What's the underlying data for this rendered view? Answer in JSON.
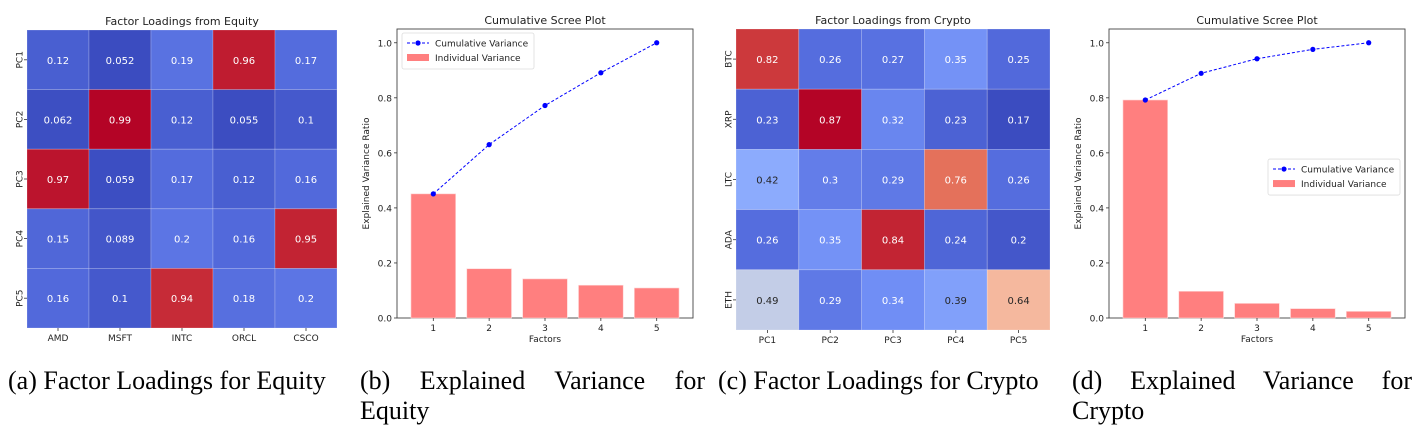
{
  "captions": {
    "a": "(a) Factor Loadings for Equity",
    "b": "(b) Explained Variance for Equity",
    "c": "(c) Factor Loadings for Crypto",
    "d": "(d) Explained Variance for Crypto"
  },
  "chart_data": [
    {
      "id": "equity-heatmap",
      "type": "heatmap",
      "title": "Factor Loadings from Equity",
      "colormap": "coolwarm",
      "xticklabels": [
        "AMD",
        "MSFT",
        "INTC",
        "ORCL",
        "CSCO"
      ],
      "yticklabels": [
        "PC1",
        "PC2",
        "PC3",
        "PC4",
        "PC5"
      ],
      "values": [
        [
          0.12,
          0.052,
          0.19,
          0.96,
          0.17
        ],
        [
          0.062,
          0.99,
          0.12,
          0.055,
          0.1
        ],
        [
          0.97,
          0.059,
          0.17,
          0.12,
          0.16
        ],
        [
          0.15,
          0.089,
          0.2,
          0.16,
          0.95
        ],
        [
          0.16,
          0.1,
          0.94,
          0.18,
          0.2
        ]
      ]
    },
    {
      "id": "equity-scree",
      "type": "bar",
      "title": "Cumulative Scree Plot",
      "xlabel": "Factors",
      "ylabel": "Explained Variance Ratio",
      "categories": [
        "1",
        "2",
        "3",
        "4",
        "5"
      ],
      "ylim": [
        0,
        1.05
      ],
      "yticks": [
        "0.0",
        "0.2",
        "0.4",
        "0.6",
        "0.8",
        "1.0"
      ],
      "legend_position": "top-left",
      "series": [
        {
          "name": "Cumulative Variance",
          "type": "line",
          "color": "#0000ff",
          "values": [
            0.451,
            0.63,
            0.772,
            0.891,
            1.0
          ]
        },
        {
          "name": "Individual Variance",
          "type": "bar",
          "color": "#ff7f7f",
          "values": [
            0.451,
            0.179,
            0.142,
            0.119,
            0.109
          ]
        }
      ]
    },
    {
      "id": "crypto-heatmap",
      "type": "heatmap",
      "title": "Factor Loadings from Crypto",
      "colormap": "coolwarm",
      "xticklabels": [
        "PC1",
        "PC2",
        "PC3",
        "PC4",
        "PC5"
      ],
      "yticklabels": [
        "BTC",
        "XRP",
        "LTC",
        "ADA",
        "ETH"
      ],
      "values": [
        [
          0.82,
          0.26,
          0.27,
          0.35,
          0.25
        ],
        [
          0.23,
          0.87,
          0.32,
          0.23,
          0.17
        ],
        [
          0.42,
          0.3,
          0.29,
          0.76,
          0.26
        ],
        [
          0.26,
          0.35,
          0.84,
          0.24,
          0.2
        ],
        [
          0.49,
          0.29,
          0.34,
          0.39,
          0.64
        ]
      ]
    },
    {
      "id": "crypto-scree",
      "type": "bar",
      "title": "Cumulative Scree Plot",
      "xlabel": "Factors",
      "ylabel": "Explained Variance Ratio",
      "categories": [
        "1",
        "2",
        "3",
        "4",
        "5"
      ],
      "ylim": [
        0,
        1.05
      ],
      "yticks": [
        "0.0",
        "0.2",
        "0.4",
        "0.6",
        "0.8",
        "1.0"
      ],
      "legend_position": "center-right",
      "series": [
        {
          "name": "Cumulative Variance",
          "type": "line",
          "color": "#0000ff",
          "values": [
            0.792,
            0.889,
            0.942,
            0.976,
            1.0
          ]
        },
        {
          "name": "Individual Variance",
          "type": "bar",
          "color": "#ff7f7f",
          "values": [
            0.792,
            0.097,
            0.053,
            0.034,
            0.024
          ]
        }
      ]
    }
  ]
}
